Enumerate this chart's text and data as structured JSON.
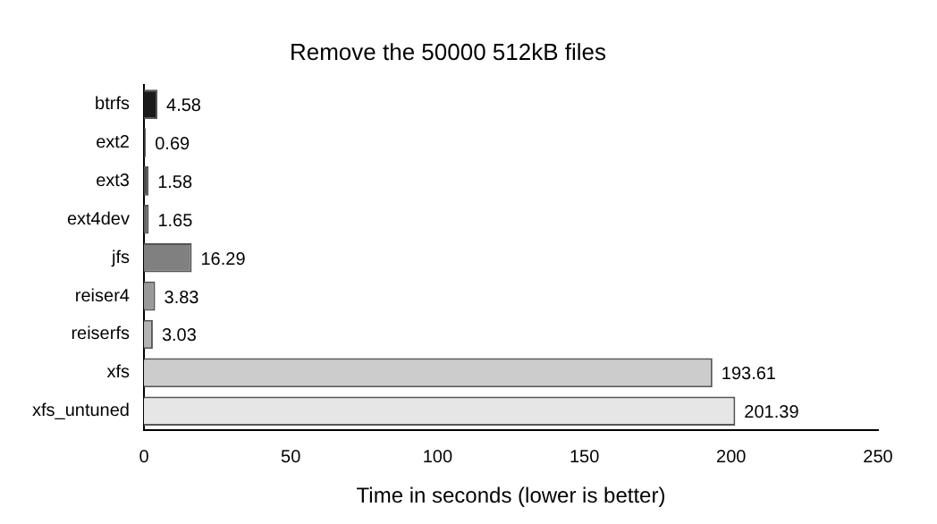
{
  "chart_data": {
    "type": "bar",
    "orientation": "horizontal",
    "title": "Remove the 50000 512kB files",
    "xlabel": "Time in seconds (lower is better)",
    "categories": [
      "btrfs",
      "ext2",
      "ext3",
      "ext4dev",
      "jfs",
      "reiser4",
      "reiserfs",
      "xfs",
      "xfs_untuned"
    ],
    "values": [
      4.58,
      0.69,
      1.58,
      1.65,
      16.29,
      3.83,
      3.03,
      193.61,
      201.39
    ],
    "colors": [
      "#1a1a1a",
      "#333333",
      "#4d4d4d",
      "#666666",
      "#808080",
      "#999999",
      "#b3b3b3",
      "#cccccc",
      "#e6e6e6"
    ],
    "xlim": [
      0,
      250
    ],
    "xticks": [
      0,
      50,
      100,
      150,
      200,
      250
    ],
    "data_labels": true,
    "grid": false,
    "legend": false
  }
}
